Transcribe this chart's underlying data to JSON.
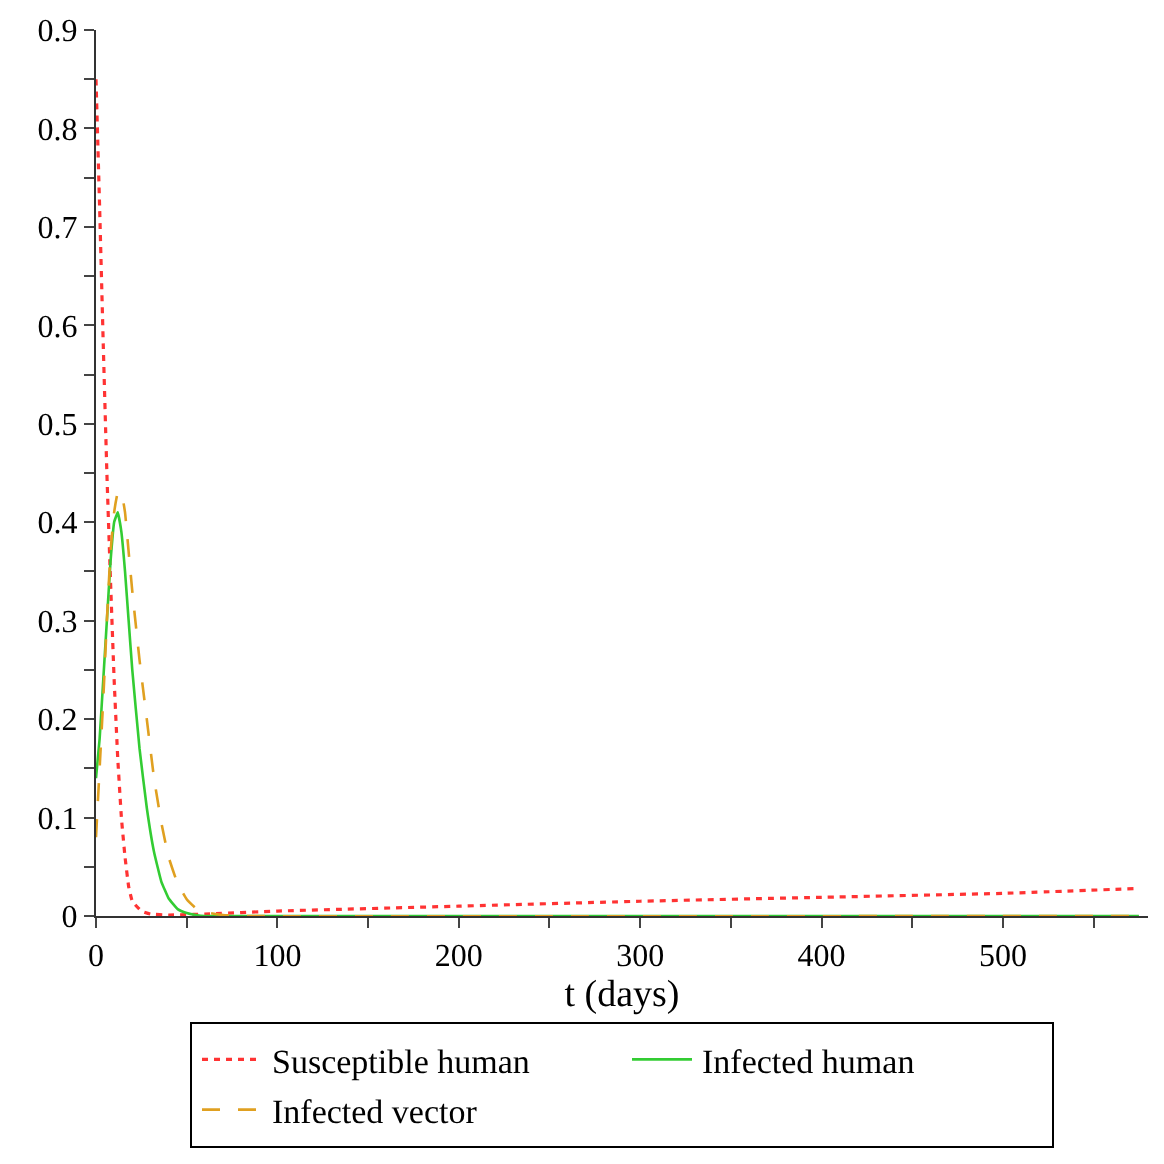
{
  "chart_data": {
    "type": "line",
    "xlabel": "t (days)",
    "xlim": [
      0,
      580
    ],
    "ylim": [
      0,
      0.9
    ],
    "xticks": [
      0,
      {
        "value": 50,
        "label": null
      },
      100,
      {
        "value": 150,
        "label": null
      },
      200,
      {
        "value": 250,
        "label": null
      },
      300,
      {
        "value": 350,
        "label": null
      },
      400,
      {
        "value": 450,
        "label": null
      },
      500,
      {
        "value": 550,
        "label": null
      }
    ],
    "yticks": [
      0,
      {
        "value": 0.05,
        "label": null
      },
      0.1,
      {
        "value": 0.15,
        "label": null
      },
      0.2,
      {
        "value": 0.25,
        "label": null
      },
      0.3,
      {
        "value": 0.35,
        "label": null
      },
      0.4,
      {
        "value": 0.45,
        "label": null
      },
      0.5,
      {
        "value": 0.55,
        "label": null
      },
      0.6,
      {
        "value": 0.65,
        "label": null
      },
      0.7,
      {
        "value": 0.75,
        "label": null
      },
      0.8,
      {
        "value": 0.85,
        "label": null
      },
      0.9
    ],
    "legend": "bottom",
    "series": [
      {
        "name": "Susceptible human",
        "color": "#ff3333",
        "line_style": "dotted",
        "x": [
          0,
          2,
          4,
          6,
          8,
          10,
          12,
          14,
          16,
          18,
          20,
          25,
          30,
          40,
          60,
          100,
          200,
          300,
          400,
          500,
          575
        ],
        "values": [
          0.85,
          0.72,
          0.58,
          0.45,
          0.34,
          0.24,
          0.16,
          0.1,
          0.06,
          0.03,
          0.015,
          0.005,
          0.002,
          0.001,
          0.002,
          0.005,
          0.01,
          0.015,
          0.019,
          0.023,
          0.028
        ]
      },
      {
        "name": "Infected human",
        "color": "#33cc33",
        "line_style": "solid",
        "x": [
          0,
          2,
          4,
          6,
          8,
          10,
          12,
          14,
          16,
          18,
          20,
          24,
          28,
          32,
          36,
          40,
          45,
          50,
          55,
          60,
          80,
          575
        ],
        "values": [
          0.14,
          0.18,
          0.24,
          0.3,
          0.36,
          0.4,
          0.41,
          0.39,
          0.35,
          0.3,
          0.25,
          0.17,
          0.11,
          0.065,
          0.035,
          0.018,
          0.007,
          0.003,
          0.001,
          0.0,
          0.0,
          0.0
        ]
      },
      {
        "name": "Infected vector",
        "color": "#e0a020",
        "line_style": "dashed",
        "x": [
          0,
          2,
          4,
          6,
          8,
          10,
          12,
          14,
          16,
          18,
          20,
          24,
          28,
          32,
          36,
          40,
          45,
          50,
          55,
          60,
          70,
          80,
          575
        ],
        "values": [
          0.08,
          0.15,
          0.22,
          0.3,
          0.37,
          0.41,
          0.43,
          0.43,
          0.41,
          0.37,
          0.33,
          0.26,
          0.2,
          0.14,
          0.095,
          0.06,
          0.033,
          0.017,
          0.008,
          0.004,
          0.001,
          0.0,
          0.0
        ]
      }
    ]
  }
}
